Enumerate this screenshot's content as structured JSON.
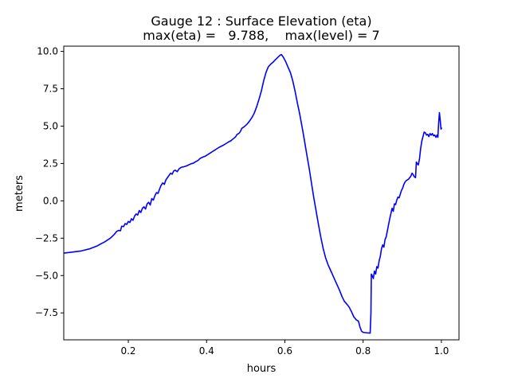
{
  "chart_data": {
    "type": "line",
    "title_line1": "Gauge 12 : Surface Elevation (eta)",
    "title_line2": "max(eta) =   9.788,    max(level) = 7",
    "xlabel": "hours",
    "ylabel": "meters",
    "xlim": [
      0.035,
      1.045
    ],
    "ylim": [
      -9.3,
      10.35
    ],
    "xticks": [
      0.2,
      0.4,
      0.6,
      0.8,
      1.0
    ],
    "xtick_labels": [
      "0.2",
      "0.4",
      "0.6",
      "0.8",
      "1.0"
    ],
    "yticks": [
      -7.5,
      -5.0,
      -2.5,
      0.0,
      2.5,
      5.0,
      7.5,
      10.0
    ],
    "ytick_labels": [
      "−7.5",
      "−5.0",
      "−2.5",
      "0.0",
      "2.5",
      "5.0",
      "7.5",
      "10.0"
    ],
    "grid": false,
    "series": [
      {
        "color": "#0000ff",
        "points": [
          [
            0.035,
            -3.5
          ],
          [
            0.06,
            -3.42
          ],
          [
            0.08,
            -3.35
          ],
          [
            0.1,
            -3.22
          ],
          [
            0.12,
            -3.02
          ],
          [
            0.14,
            -2.74
          ],
          [
            0.155,
            -2.48
          ],
          [
            0.165,
            -2.22
          ],
          [
            0.17,
            -2.05
          ],
          [
            0.175,
            -1.98
          ],
          [
            0.18,
            -2.0
          ],
          [
            0.183,
            -1.7
          ],
          [
            0.188,
            -1.72
          ],
          [
            0.192,
            -1.52
          ],
          [
            0.196,
            -1.58
          ],
          [
            0.2,
            -1.38
          ],
          [
            0.204,
            -1.45
          ],
          [
            0.208,
            -1.2
          ],
          [
            0.212,
            -1.3
          ],
          [
            0.216,
            -1.02
          ],
          [
            0.22,
            -0.88
          ],
          [
            0.224,
            -0.95
          ],
          [
            0.228,
            -0.65
          ],
          [
            0.232,
            -0.78
          ],
          [
            0.236,
            -0.5
          ],
          [
            0.24,
            -0.4
          ],
          [
            0.244,
            -0.55
          ],
          [
            0.248,
            -0.2
          ],
          [
            0.252,
            -0.1
          ],
          [
            0.256,
            -0.28
          ],
          [
            0.26,
            0.15
          ],
          [
            0.264,
            0.05
          ],
          [
            0.268,
            0.35
          ],
          [
            0.272,
            0.55
          ],
          [
            0.276,
            0.5
          ],
          [
            0.28,
            0.8
          ],
          [
            0.284,
            1.05
          ],
          [
            0.288,
            1.2
          ],
          [
            0.292,
            1.1
          ],
          [
            0.296,
            1.4
          ],
          [
            0.3,
            1.55
          ],
          [
            0.304,
            1.7
          ],
          [
            0.308,
            1.85
          ],
          [
            0.312,
            1.78
          ],
          [
            0.316,
            2.0
          ],
          [
            0.32,
            2.05
          ],
          [
            0.325,
            1.95
          ],
          [
            0.33,
            2.15
          ],
          [
            0.336,
            2.25
          ],
          [
            0.342,
            2.28
          ],
          [
            0.348,
            2.33
          ],
          [
            0.354,
            2.4
          ],
          [
            0.36,
            2.48
          ],
          [
            0.366,
            2.52
          ],
          [
            0.372,
            2.62
          ],
          [
            0.378,
            2.7
          ],
          [
            0.384,
            2.85
          ],
          [
            0.39,
            2.92
          ],
          [
            0.396,
            2.98
          ],
          [
            0.402,
            3.08
          ],
          [
            0.408,
            3.18
          ],
          [
            0.414,
            3.28
          ],
          [
            0.42,
            3.38
          ],
          [
            0.426,
            3.48
          ],
          [
            0.432,
            3.58
          ],
          [
            0.438,
            3.66
          ],
          [
            0.444,
            3.74
          ],
          [
            0.45,
            3.84
          ],
          [
            0.456,
            3.94
          ],
          [
            0.462,
            4.02
          ],
          [
            0.468,
            4.15
          ],
          [
            0.474,
            4.28
          ],
          [
            0.478,
            4.45
          ],
          [
            0.482,
            4.5
          ],
          [
            0.486,
            4.62
          ],
          [
            0.49,
            4.85
          ],
          [
            0.494,
            4.92
          ],
          [
            0.498,
            5.0
          ],
          [
            0.504,
            5.15
          ],
          [
            0.51,
            5.35
          ],
          [
            0.516,
            5.58
          ],
          [
            0.522,
            5.88
          ],
          [
            0.528,
            6.3
          ],
          [
            0.534,
            6.8
          ],
          [
            0.54,
            7.35
          ],
          [
            0.546,
            8.05
          ],
          [
            0.552,
            8.6
          ],
          [
            0.558,
            8.98
          ],
          [
            0.564,
            9.15
          ],
          [
            0.57,
            9.28
          ],
          [
            0.576,
            9.45
          ],
          [
            0.582,
            9.6
          ],
          [
            0.588,
            9.75
          ],
          [
            0.591,
            9.788
          ],
          [
            0.596,
            9.62
          ],
          [
            0.602,
            9.32
          ],
          [
            0.608,
            8.95
          ],
          [
            0.614,
            8.6
          ],
          [
            0.62,
            8.05
          ],
          [
            0.626,
            7.35
          ],
          [
            0.632,
            6.55
          ],
          [
            0.638,
            5.8
          ],
          [
            0.644,
            4.95
          ],
          [
            0.65,
            4.05
          ],
          [
            0.656,
            3.1
          ],
          [
            0.662,
            2.2
          ],
          [
            0.668,
            1.2
          ],
          [
            0.674,
            0.2
          ],
          [
            0.68,
            -0.7
          ],
          [
            0.686,
            -1.6
          ],
          [
            0.692,
            -2.45
          ],
          [
            0.698,
            -3.2
          ],
          [
            0.704,
            -3.8
          ],
          [
            0.71,
            -4.25
          ],
          [
            0.716,
            -4.6
          ],
          [
            0.722,
            -4.95
          ],
          [
            0.728,
            -5.3
          ],
          [
            0.734,
            -5.65
          ],
          [
            0.74,
            -6.0
          ],
          [
            0.746,
            -6.4
          ],
          [
            0.752,
            -6.72
          ],
          [
            0.758,
            -6.9
          ],
          [
            0.764,
            -7.1
          ],
          [
            0.77,
            -7.4
          ],
          [
            0.776,
            -7.75
          ],
          [
            0.782,
            -7.95
          ],
          [
            0.788,
            -8.05
          ],
          [
            0.792,
            -8.45
          ],
          [
            0.796,
            -8.72
          ],
          [
            0.8,
            -8.8
          ],
          [
            0.806,
            -8.82
          ],
          [
            0.812,
            -8.84
          ],
          [
            0.818,
            -8.85
          ],
          [
            0.82,
            -7.5
          ],
          [
            0.821,
            -4.9
          ],
          [
            0.823,
            -5.0
          ],
          [
            0.826,
            -5.2
          ],
          [
            0.829,
            -4.7
          ],
          [
            0.832,
            -4.9
          ],
          [
            0.835,
            -4.4
          ],
          [
            0.838,
            -4.5
          ],
          [
            0.841,
            -4.0
          ],
          [
            0.844,
            -3.7
          ],
          [
            0.847,
            -3.2
          ],
          [
            0.85,
            -2.95
          ],
          [
            0.853,
            -3.1
          ],
          [
            0.856,
            -2.6
          ],
          [
            0.859,
            -2.4
          ],
          [
            0.862,
            -2.0
          ],
          [
            0.865,
            -1.6
          ],
          [
            0.868,
            -1.2
          ],
          [
            0.871,
            -0.85
          ],
          [
            0.874,
            -0.5
          ],
          [
            0.877,
            -0.7
          ],
          [
            0.88,
            -0.2
          ],
          [
            0.883,
            -0.25
          ],
          [
            0.886,
            0.05
          ],
          [
            0.889,
            0.25
          ],
          [
            0.892,
            0.2
          ],
          [
            0.895,
            0.45
          ],
          [
            0.898,
            0.7
          ],
          [
            0.901,
            0.85
          ],
          [
            0.904,
            1.1
          ],
          [
            0.907,
            1.25
          ],
          [
            0.91,
            1.35
          ],
          [
            0.913,
            1.4
          ],
          [
            0.916,
            1.45
          ],
          [
            0.919,
            1.55
          ],
          [
            0.922,
            1.65
          ],
          [
            0.925,
            1.85
          ],
          [
            0.928,
            1.75
          ],
          [
            0.931,
            1.6
          ],
          [
            0.934,
            1.55
          ],
          [
            0.936,
            2.6
          ],
          [
            0.938,
            2.5
          ],
          [
            0.941,
            2.4
          ],
          [
            0.944,
            2.8
          ],
          [
            0.947,
            3.5
          ],
          [
            0.95,
            4.0
          ],
          [
            0.953,
            4.3
          ],
          [
            0.956,
            4.6
          ],
          [
            0.959,
            4.55
          ],
          [
            0.962,
            4.4
          ],
          [
            0.965,
            4.45
          ],
          [
            0.968,
            4.3
          ],
          [
            0.971,
            4.5
          ],
          [
            0.974,
            4.4
          ],
          [
            0.977,
            4.5
          ],
          [
            0.98,
            4.35
          ],
          [
            0.983,
            4.4
          ],
          [
            0.986,
            4.25
          ],
          [
            0.989,
            4.4
          ],
          [
            0.991,
            4.25
          ],
          [
            0.993,
            5.2
          ],
          [
            0.995,
            5.9
          ],
          [
            0.997,
            5.4
          ],
          [
            0.999,
            4.8
          ],
          [
            1.001,
            4.9
          ]
        ]
      }
    ]
  }
}
